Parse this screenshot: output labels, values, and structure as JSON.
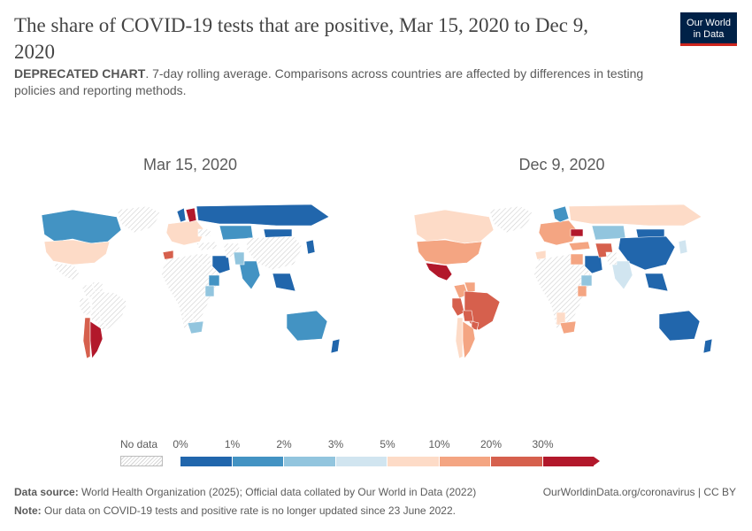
{
  "header": {
    "title": "The share of COVID-19 tests that are positive, Mar 15, 2020 to Dec 9, 2020",
    "subtitle_bold": "DEPRECATED CHART",
    "subtitle_rest": ". 7-day rolling average. Comparisons across countries are affected by differences in testing policies and reporting methods.",
    "logo_line1": "Our World",
    "logo_line2": "in Data"
  },
  "maps": [
    {
      "title": "Mar 15, 2020"
    },
    {
      "title": "Dec 9, 2020"
    }
  ],
  "legend": {
    "no_data_label": "No data",
    "tick_labels": [
      "0%",
      "1%",
      "2%",
      "3%",
      "5%",
      "10%",
      "20%",
      "30%"
    ],
    "colors": [
      "#2166ac",
      "#4393c3",
      "#92c5de",
      "#d1e5f0",
      "#fddbc7",
      "#f4a582",
      "#d6604d",
      "#b2182b"
    ],
    "no_data_color": "#eeeeee"
  },
  "footer": {
    "source_label": "Data source:",
    "source_text": "World Health Organization (2025); Official data collated by Our World in Data (2022)",
    "note_label": "Note:",
    "note_text": "Our data on COVID-19 tests and positive rate is no longer updated since 23 June 2022.",
    "url_text": "OurWorldinData.org/coronavirus | CC BY"
  },
  "chart_data": {
    "type": "choropleth",
    "metric": "share of COVID-19 tests that are positive (7-day rolling average)",
    "bins": [
      "0-1%",
      "1-2%",
      "2-3%",
      "3-5%",
      "5-10%",
      "10-20%",
      "20-30%",
      ">30%"
    ],
    "maps": [
      {
        "date": "Mar 15, 2020",
        "regions": {
          "Canada": "1-2%",
          "United States": "5-10%",
          "Greenland": "no data",
          "Mexico": "no data",
          "Brazil": "no data",
          "Peru": "no data",
          "Argentina": ">30%",
          "Chile": "20-30%",
          "Russia": "0-1%",
          "China": "no data",
          "Kazakhstan": "1-2%",
          "Saudi Arabia": "0-1%",
          "India": "1-2%",
          "Pakistan": "2-3%",
          "Iran": "no data",
          "Europe": "5-10%",
          "Finland": ">30%",
          "Norway": "0-1%",
          "Mongolia": "0-1%",
          "Africa": "no data",
          "Kenya": "2-3%",
          "South Africa": "2-3%",
          "Morocco": "20-30%",
          "Ethiopia": "1-2%",
          "Australia": "1-2%",
          "New Zealand": "0-1%",
          "Japan": "0-1%",
          "Southeast Asia": "0-1%"
        }
      },
      {
        "date": "Dec 9, 2020",
        "regions": {
          "Canada": "5-10%",
          "United States": "10-20%",
          "Greenland": "no data",
          "Mexico": ">30%",
          "Colombia": "10-20%",
          "Venezuela": "10-20%",
          "Brazil": "20-30%",
          "Peru": "20-30%",
          "Bolivia": "20-30%",
          "Paraguay": "20-30%",
          "Argentina": "10-20%",
          "Chile": "5-10%",
          "Russia": "5-10%",
          "China": "0-1%",
          "Kazakhstan": "2-3%",
          "Mongolia": "0-1%",
          "Iran": "20-30%",
          "Turkey": "10-20%",
          "Saudi Arabia": "0-1%",
          "India": "3-5%",
          "Europe": "10-20%",
          "Ukraine": ">30%",
          "Scandinavia": "1-2%",
          "Africa": "no data",
          "Egypt": "10-20%",
          "Kenya": "10-20%",
          "Ethiopia": "2-3%",
          "South Africa": "10-20%",
          "Namibia": "5-10%",
          "Morocco": "5-10%",
          "Australia": "0-1%",
          "New Zealand": "0-1%",
          "Japan": "3-5%",
          "Southeast Asia": "0-1%"
        }
      }
    ]
  }
}
